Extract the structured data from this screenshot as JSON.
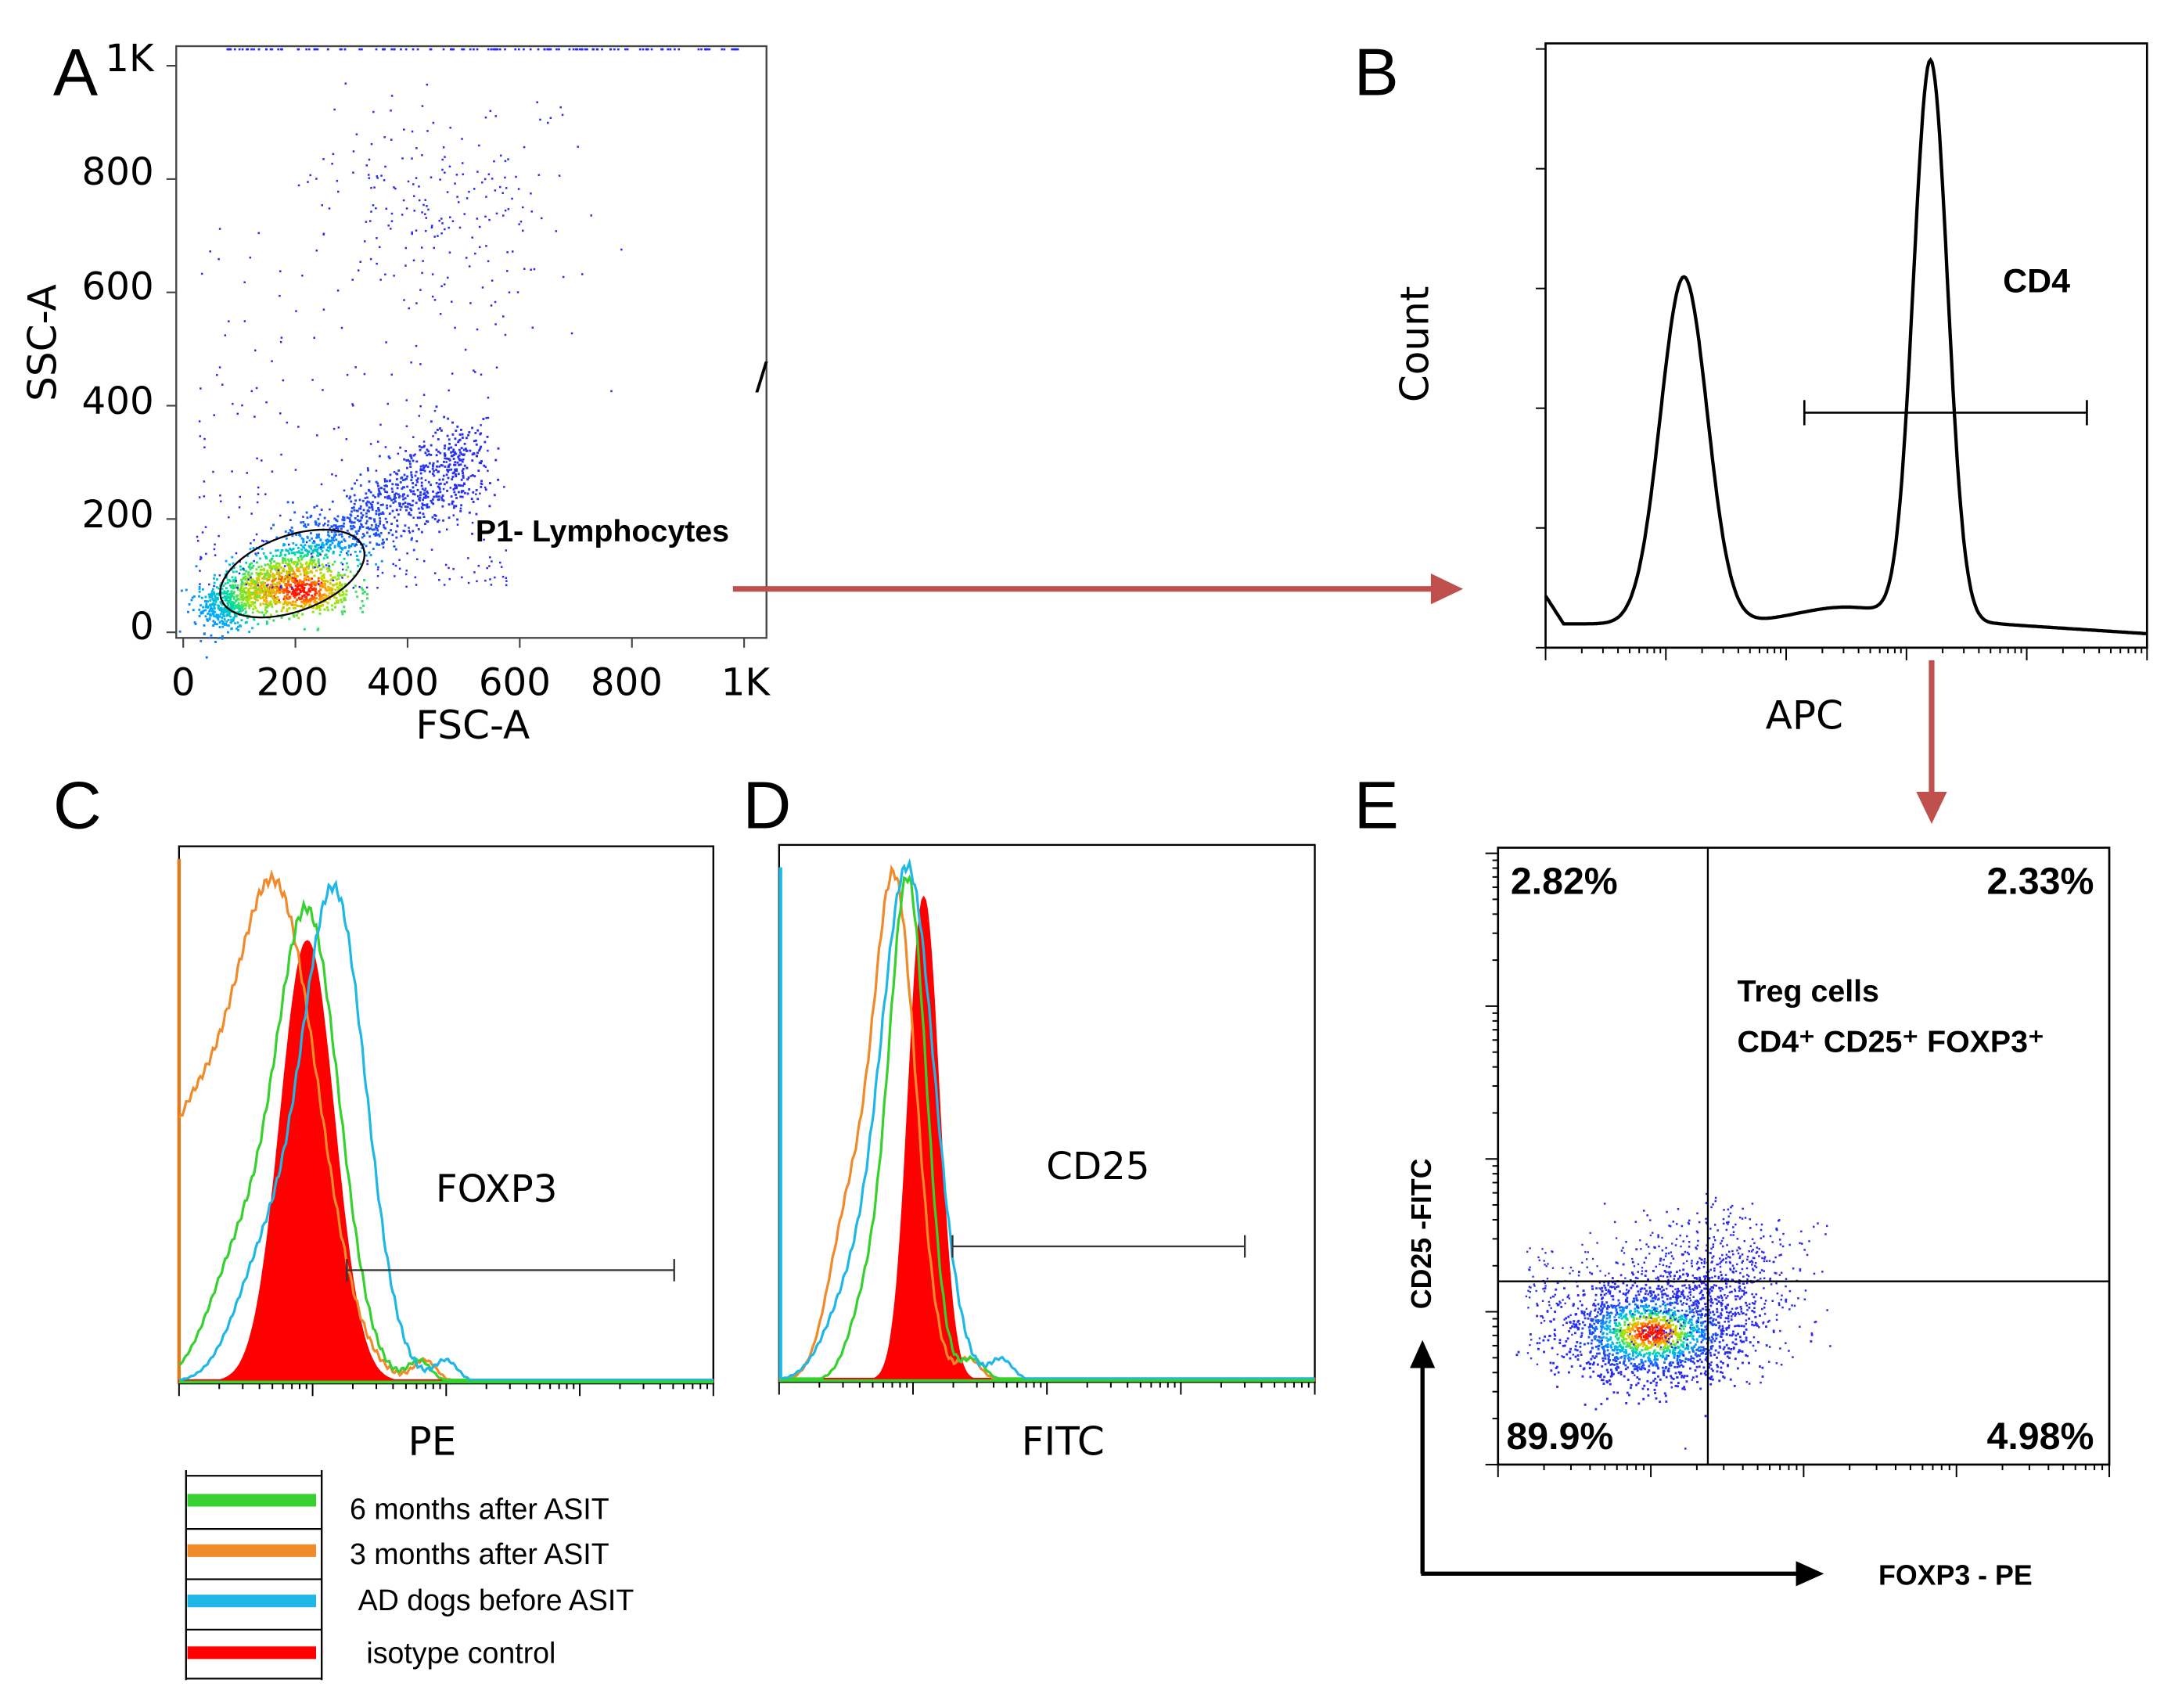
{
  "colors": {
    "arrow": "#c0504d",
    "six_months": "#36d12e",
    "three_months": "#f08a2a",
    "before": "#1fb8e6",
    "isotype": "#ff0000",
    "dots": "#2a2af0"
  },
  "chart_data": [
    {
      "panel": "A",
      "type": "scatter",
      "xlabel": "FSC-A",
      "ylabel": "SSC-A",
      "xlim": [
        0,
        1000
      ],
      "ylim": [
        0,
        1000
      ],
      "xticks": [
        "0",
        "200",
        "400",
        "600",
        "800",
        "1K"
      ],
      "yticks": [
        "0",
        "200",
        "400",
        "600",
        "800",
        "1K"
      ],
      "gate": {
        "name": "P1- Lymphocytes",
        "center": [
          210,
          75
        ],
        "rx": 130,
        "ry": 55,
        "angle_deg": 18
      },
      "density_axis": {
        "from": [
          60,
          40
        ],
        "to": [
          520,
          320
        ]
      }
    },
    {
      "panel": "B",
      "type": "line",
      "xlabel": "APC",
      "ylabel": "Count",
      "gate_label": "CD4",
      "gate": [
        0.43,
        0.9
      ],
      "peaks": [
        {
          "center": 0.23,
          "height": 0.62,
          "width": 0.055
        },
        {
          "center": 0.64,
          "height": 1.0,
          "width": 0.04
        }
      ]
    },
    {
      "panel": "C",
      "type": "area",
      "xlabel": "PE",
      "gate_label": "FOXP3",
      "gate": [
        0.31,
        0.93
      ],
      "series": [
        {
          "name": "isotype control",
          "center": 0.24,
          "sd": 0.05,
          "height": 0.83,
          "fill": true
        },
        {
          "name": "3 months after ASIT",
          "center": 0.18,
          "sd": 0.08,
          "height": 0.92
        },
        {
          "name": "6 months after ASIT",
          "center": 0.24,
          "sd": 0.06,
          "height": 0.88
        },
        {
          "name": "AD dogs before ASIT",
          "center": 0.29,
          "sd": 0.06,
          "height": 0.92
        }
      ]
    },
    {
      "panel": "D",
      "type": "area",
      "xlabel": "FITC",
      "gate_label": "CD25",
      "gate": [
        0.32,
        0.87
      ],
      "series": [
        {
          "name": "isotype control",
          "center": 0.27,
          "sd": 0.028,
          "height": 0.91,
          "fill": true
        },
        {
          "name": "3 months after ASIT",
          "center": 0.215,
          "sd": 0.04,
          "height": 0.94
        },
        {
          "name": "6 months after ASIT",
          "center": 0.24,
          "sd": 0.035,
          "height": 0.94
        },
        {
          "name": "AD dogs before ASIT",
          "center": 0.24,
          "sd": 0.05,
          "height": 0.96
        }
      ]
    },
    {
      "panel": "E",
      "type": "scatter",
      "xlabel": "FOXP3 - PE",
      "ylabel": "CD25 -FITC",
      "title": "Treg cells",
      "subtitle": "CD4⁺ CD25⁺ FOXP3⁺",
      "quadrants": {
        "upper_left": "2.82%",
        "upper_right": "2.33%",
        "lower_left": "89.9%",
        "lower_right": "4.98%"
      },
      "population_center": [
        0.25,
        0.24
      ]
    }
  ],
  "panels": {
    "A": {
      "letter": "A",
      "xlabel": "FSC-A",
      "ylabel": "SSC-A",
      "gate_label": "P1- Lymphocytes",
      "ticks": [
        "0",
        "200",
        "400",
        "600",
        "800",
        "1K"
      ]
    },
    "B": {
      "letter": "B",
      "xlabel": "APC",
      "ylabel": "Count",
      "gate_label": "CD4"
    },
    "C": {
      "letter": "C",
      "xlabel": "PE",
      "gate_label": "FOXP3"
    },
    "D": {
      "letter": "D",
      "xlabel": "FITC",
      "gate_label": "CD25"
    },
    "E": {
      "letter": "E",
      "xlabel": "FOXP3 - PE",
      "ylabel": "CD25 -FITC",
      "title": "Treg cells",
      "q_ul": "2.82%",
      "q_ur": "2.33%",
      "q_ll": "89.9%",
      "q_lr": "4.98%"
    }
  },
  "legend": {
    "items": [
      "6 months after ASIT",
      "3 months after ASIT",
      "AD dogs before ASIT",
      "isotype control"
    ]
  }
}
